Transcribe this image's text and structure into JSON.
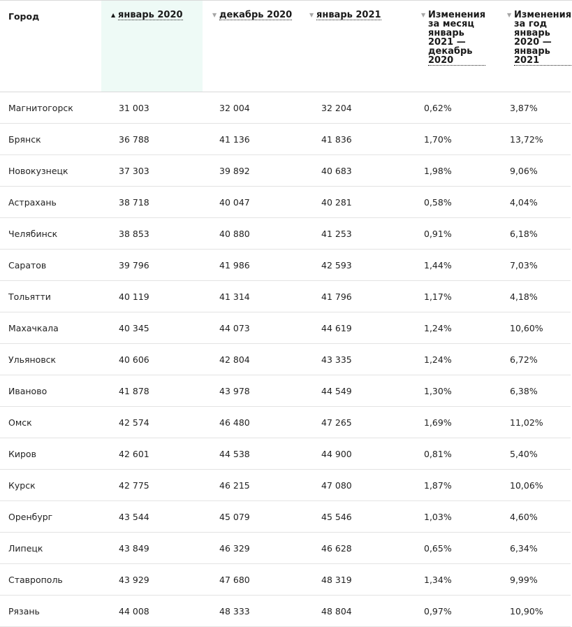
{
  "table": {
    "headers": {
      "city": "Город",
      "jan2020": "январь 2020",
      "dec2020": "декабрь 2020",
      "jan2021": "январь 2021",
      "mom_lines": [
        "Изменения",
        "за месяц",
        "январь",
        "2021 —",
        "декабрь",
        "2020"
      ],
      "yoy_lines": [
        "Изменения",
        "за год",
        "январь",
        "2020 —",
        "январь",
        "2021"
      ]
    },
    "sort": {
      "active_column": "jan2020",
      "direction": "ascending",
      "active_bg": "#eefaf6"
    },
    "rows": [
      {
        "city": "Магнитогорск",
        "jan2020": "31 003",
        "dec2020": "32 004",
        "jan2021": "32 204",
        "mom": "0,62%",
        "yoy": "3,87%"
      },
      {
        "city": "Брянск",
        "jan2020": "36 788",
        "dec2020": "41 136",
        "jan2021": "41 836",
        "mom": "1,70%",
        "yoy": "13,72%"
      },
      {
        "city": "Новокузнецк",
        "jan2020": "37 303",
        "dec2020": "39 892",
        "jan2021": "40 683",
        "mom": "1,98%",
        "yoy": "9,06%"
      },
      {
        "city": "Астрахань",
        "jan2020": "38 718",
        "dec2020": "40 047",
        "jan2021": "40 281",
        "mom": "0,58%",
        "yoy": "4,04%"
      },
      {
        "city": "Челябинск",
        "jan2020": "38 853",
        "dec2020": "40 880",
        "jan2021": "41 253",
        "mom": "0,91%",
        "yoy": "6,18%"
      },
      {
        "city": "Саратов",
        "jan2020": "39 796",
        "dec2020": "41 986",
        "jan2021": "42 593",
        "mom": "1,44%",
        "yoy": "7,03%"
      },
      {
        "city": "Тольятти",
        "jan2020": "40 119",
        "dec2020": "41 314",
        "jan2021": "41 796",
        "mom": "1,17%",
        "yoy": "4,18%"
      },
      {
        "city": "Махачкала",
        "jan2020": "40 345",
        "dec2020": "44 073",
        "jan2021": "44 619",
        "mom": "1,24%",
        "yoy": "10,60%"
      },
      {
        "city": "Ульяновск",
        "jan2020": "40 606",
        "dec2020": "42 804",
        "jan2021": "43 335",
        "mom": "1,24%",
        "yoy": "6,72%"
      },
      {
        "city": "Иваново",
        "jan2020": "41 878",
        "dec2020": "43 978",
        "jan2021": "44 549",
        "mom": "1,30%",
        "yoy": "6,38%"
      },
      {
        "city": "Омск",
        "jan2020": "42 574",
        "dec2020": "46 480",
        "jan2021": "47 265",
        "mom": "1,69%",
        "yoy": "11,02%"
      },
      {
        "city": "Киров",
        "jan2020": "42 601",
        "dec2020": "44 538",
        "jan2021": "44 900",
        "mom": "0,81%",
        "yoy": "5,40%"
      },
      {
        "city": "Курск",
        "jan2020": "42 775",
        "dec2020": "46 215",
        "jan2021": "47 080",
        "mom": "1,87%",
        "yoy": "10,06%"
      },
      {
        "city": "Оренбург",
        "jan2020": "43 544",
        "dec2020": "45 079",
        "jan2021": "45 546",
        "mom": "1,03%",
        "yoy": "4,60%"
      },
      {
        "city": "Липецк",
        "jan2020": "43 849",
        "dec2020": "46 329",
        "jan2021": "46 628",
        "mom": "0,65%",
        "yoy": "6,34%"
      },
      {
        "city": "Ставрополь",
        "jan2020": "43 929",
        "dec2020": "47 680",
        "jan2021": "48 319",
        "mom": "1,34%",
        "yoy": "9,99%"
      },
      {
        "city": "Рязань",
        "jan2020": "44 008",
        "dec2020": "48 333",
        "jan2021": "48 804",
        "mom": "0,97%",
        "yoy": "10,90%"
      }
    ]
  }
}
